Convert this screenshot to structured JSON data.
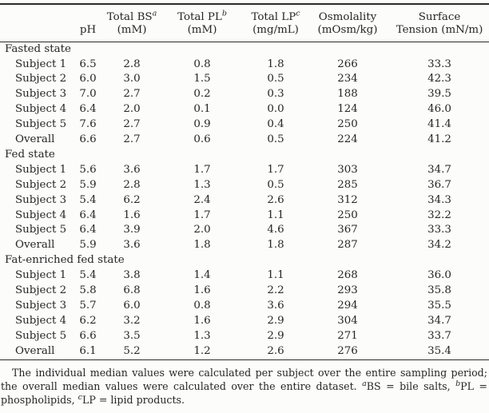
{
  "table": {
    "header": {
      "columns": [
        {
          "line1": "",
          "sup": "",
          "line2": ""
        },
        {
          "line1": "",
          "sup": "",
          "line2": "pH"
        },
        {
          "line1": "Total BS",
          "sup": "a",
          "line2": "(mM)"
        },
        {
          "line1": "Total PL",
          "sup": "b",
          "line2": "(mM)"
        },
        {
          "line1": "Total LP",
          "sup": "c",
          "line2": "(mg/mL)"
        },
        {
          "line1": "Osmolality",
          "sup": "",
          "line2": "(mOsm/kg)"
        },
        {
          "line1": "Surface",
          "sup": "",
          "line2": "Tension (mN/m)"
        }
      ]
    },
    "sections": [
      {
        "label": "Fasted state",
        "rows": [
          {
            "label": "Subject 1",
            "values": [
              "6.5",
              "2.8",
              "0.8",
              "1.8",
              "266",
              "33.3"
            ]
          },
          {
            "label": "Subject 2",
            "values": [
              "6.0",
              "3.0",
              "1.5",
              "0.5",
              "234",
              "42.3"
            ]
          },
          {
            "label": "Subject 3",
            "values": [
              "7.0",
              "2.7",
              "0.2",
              "0.3",
              "188",
              "39.5"
            ]
          },
          {
            "label": "Subject 4",
            "values": [
              "6.4",
              "2.0",
              "0.1",
              "0.0",
              "124",
              "46.0"
            ]
          },
          {
            "label": "Subject 5",
            "values": [
              "7.6",
              "2.7",
              "0.9",
              "0.4",
              "250",
              "41.4"
            ]
          },
          {
            "label": "Overall",
            "values": [
              "6.6",
              "2.7",
              "0.6",
              "0.5",
              "224",
              "41.2"
            ]
          }
        ]
      },
      {
        "label": "Fed state",
        "rows": [
          {
            "label": "Subject 1",
            "values": [
              "5.6",
              "3.6",
              "1.7",
              "1.7",
              "303",
              "34.7"
            ]
          },
          {
            "label": "Subject 2",
            "values": [
              "5.9",
              "2.8",
              "1.3",
              "0.5",
              "285",
              "36.7"
            ]
          },
          {
            "label": "Subject 3",
            "values": [
              "5.4",
              "6.2",
              "2.4",
              "2.6",
              "312",
              "34.3"
            ]
          },
          {
            "label": "Subject 4",
            "values": [
              "6.4",
              "1.6",
              "1.7",
              "1.1",
              "250",
              "32.2"
            ]
          },
          {
            "label": "Subject 5",
            "values": [
              "6.4",
              "3.9",
              "2.0",
              "4.6",
              "367",
              "33.3"
            ]
          },
          {
            "label": "Overall",
            "values": [
              "5.9",
              "3.6",
              "1.8",
              "1.8",
              "287",
              "34.2"
            ]
          }
        ]
      },
      {
        "label": "Fat-enriched fed state",
        "rows": [
          {
            "label": "Subject 1",
            "values": [
              "5.4",
              "3.8",
              "1.4",
              "1.1",
              "268",
              "36.0"
            ]
          },
          {
            "label": "Subject 2",
            "values": [
              "5.8",
              "6.8",
              "1.6",
              "2.2",
              "293",
              "35.8"
            ]
          },
          {
            "label": "Subject 3",
            "values": [
              "5.7",
              "6.0",
              "0.8",
              "3.6",
              "294",
              "35.5"
            ]
          },
          {
            "label": "Subject 4",
            "values": [
              "6.2",
              "3.2",
              "1.6",
              "2.9",
              "304",
              "34.7"
            ]
          },
          {
            "label": "Subject 5",
            "values": [
              "6.6",
              "3.5",
              "1.3",
              "2.9",
              "271",
              "33.7"
            ]
          },
          {
            "label": "Overall",
            "values": [
              "6.1",
              "5.2",
              "1.2",
              "2.6",
              "276",
              "35.4"
            ]
          }
        ]
      }
    ],
    "footnote": {
      "text": "The individual median values were calculated per subject over the entire sampling period; the overall median values were calculated over the entire dataset. ",
      "sup_a": "a",
      "abbr_a": "BS = bile salts, ",
      "sup_b": "b",
      "abbr_b": "PL = phospholipids, ",
      "sup_c": "c",
      "abbr_c": "LP = lipid products."
    }
  }
}
